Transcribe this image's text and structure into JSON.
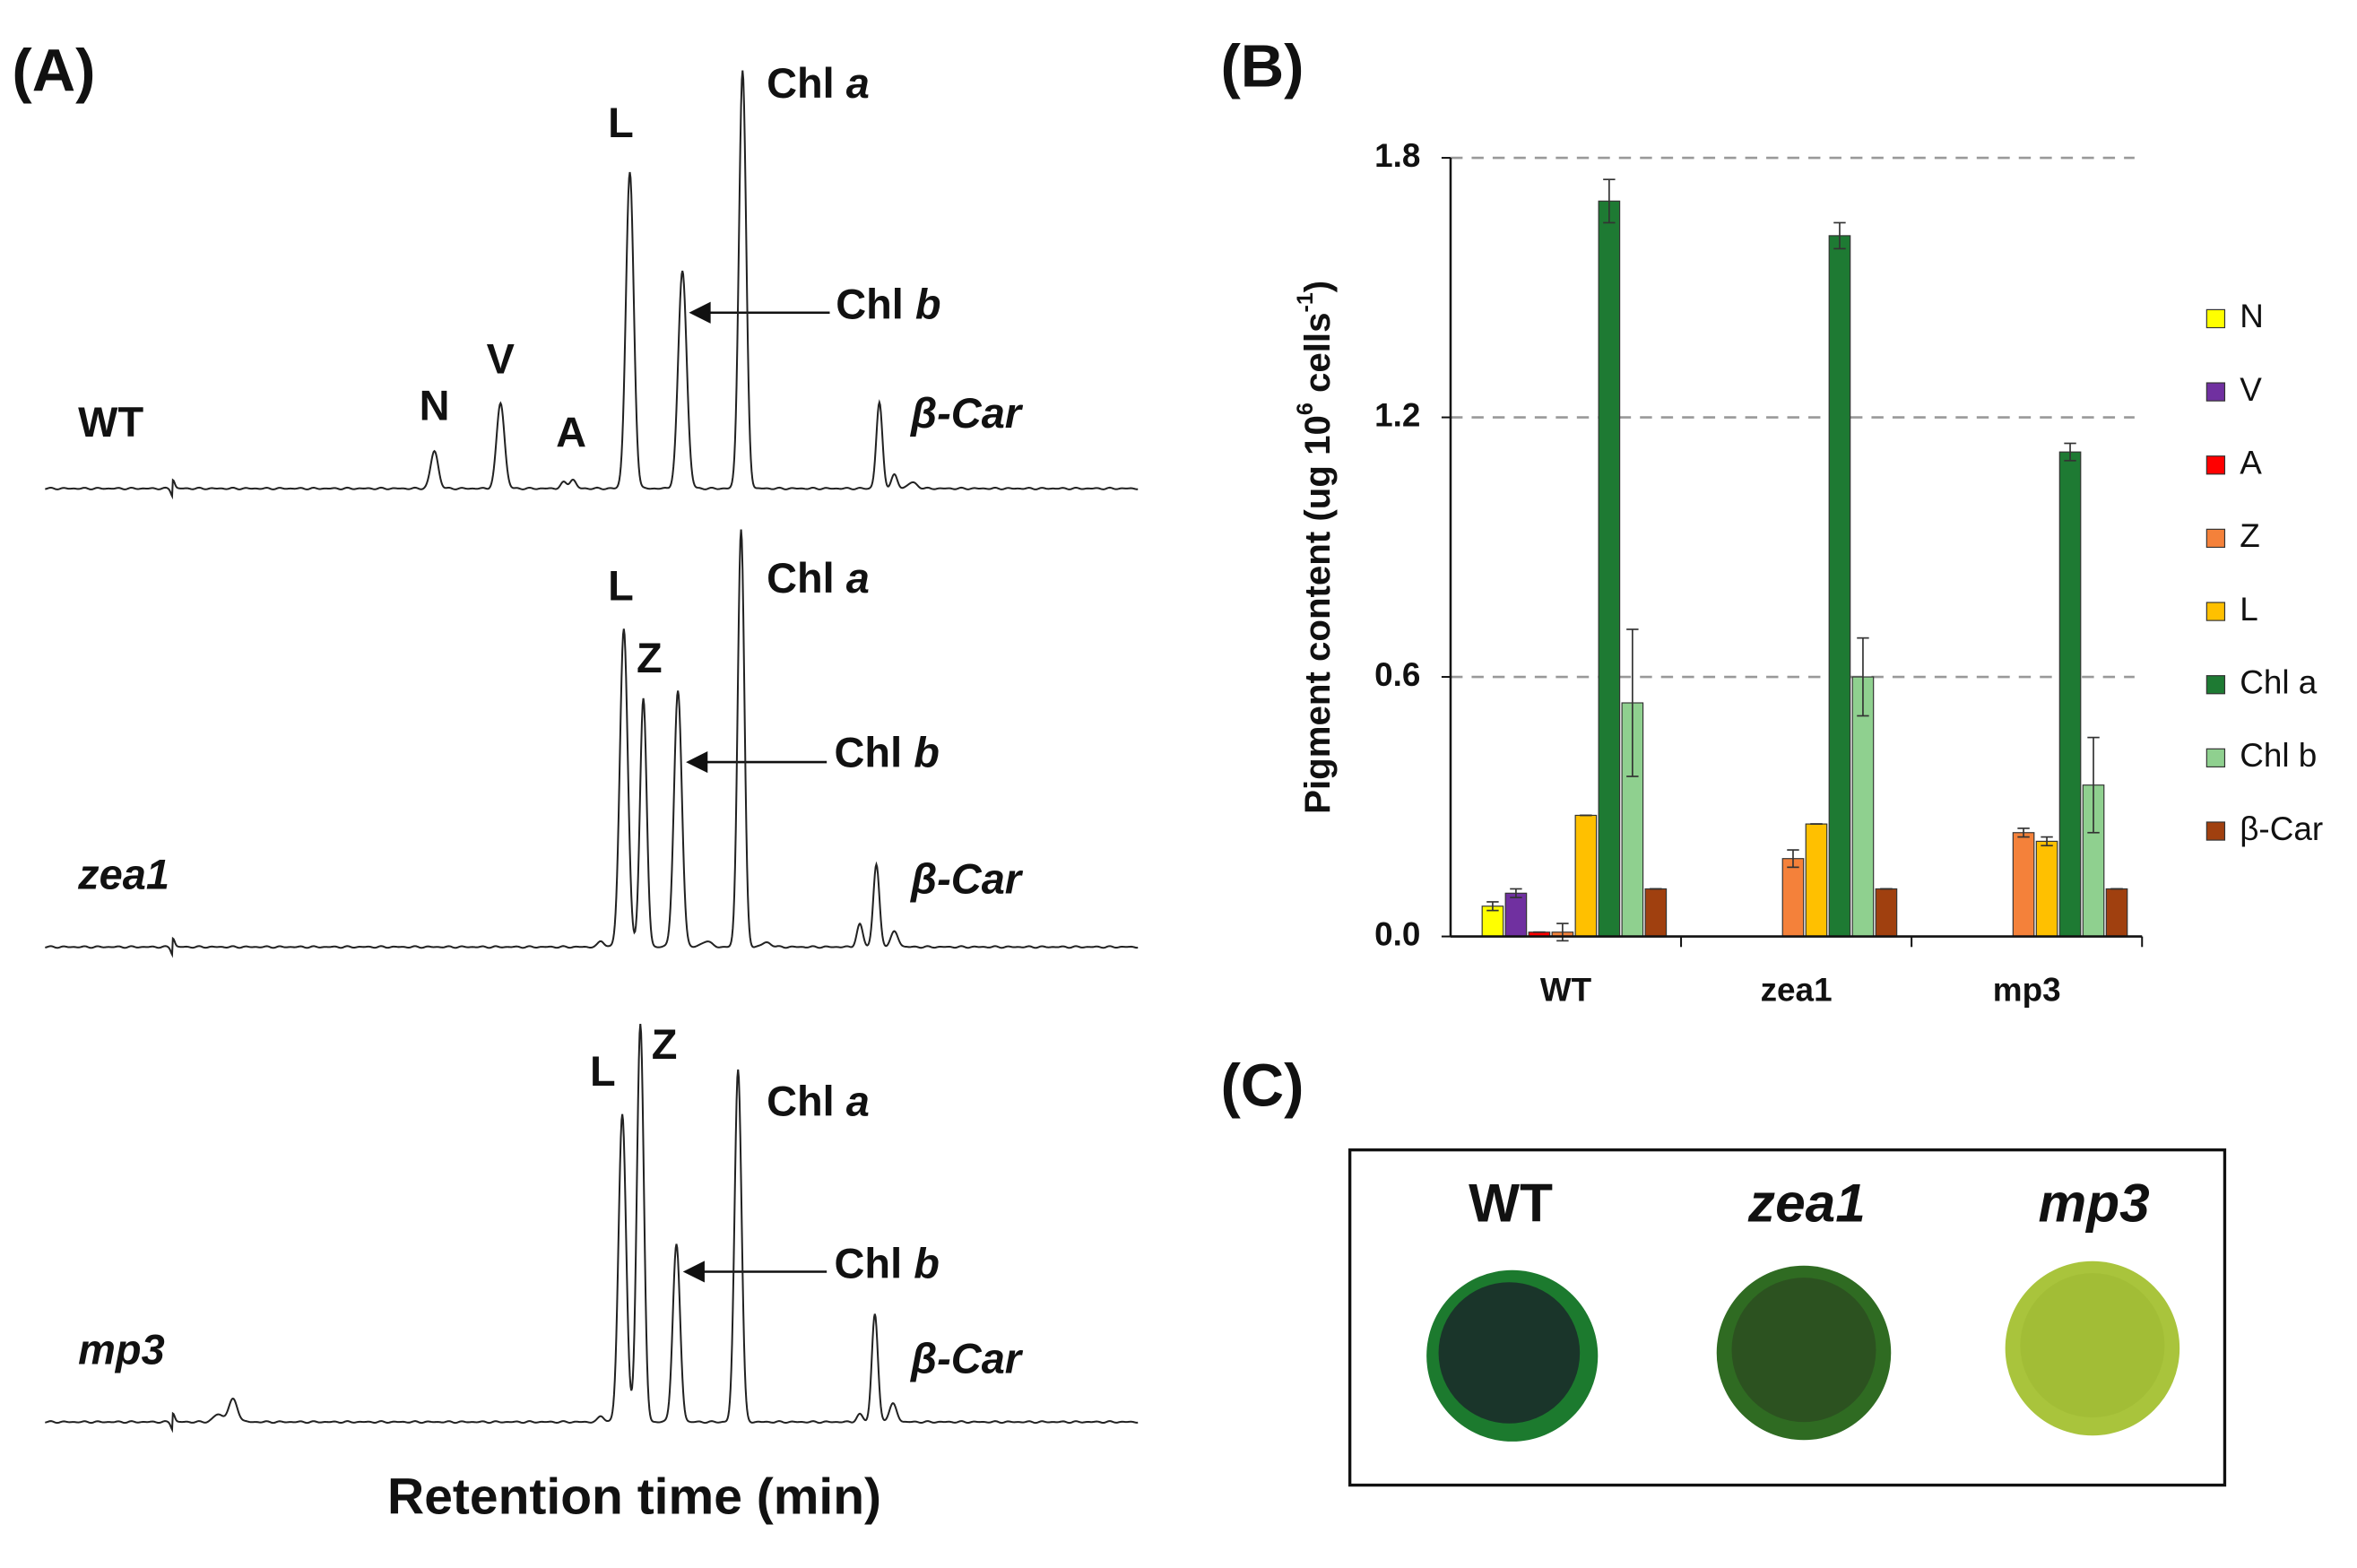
{
  "panel_a": {
    "label": "(A)",
    "x_label": "Retention time (min)",
    "wt": {
      "name": "WT",
      "n": "N",
      "v": "V",
      "a": "A",
      "l": "L",
      "chl_a": [
        "Chl",
        "a"
      ],
      "chl_b": [
        "Chl",
        "b"
      ],
      "car": "β-Car"
    },
    "zea1": {
      "name": "zea1",
      "l": "L",
      "z": "Z",
      "chl_a": [
        "Chl",
        "a"
      ],
      "chl_b": [
        "Chl",
        "b"
      ],
      "car": "β-Car"
    },
    "mp3": {
      "name": "mp3",
      "l": "L",
      "z": "Z",
      "chl_a": [
        "Chl",
        "a"
      ],
      "chl_b": [
        "Chl",
        "b"
      ],
      "car": "β-Car"
    }
  },
  "chart_data": {
    "type": "bar",
    "panel_label": "(B)",
    "y_label": {
      "text1": "Pigment content (ug 10",
      "sup1": "6",
      "text2": " cells",
      "sup2": "-1",
      "text3": ")"
    },
    "categories": [
      "WT",
      "zea1",
      "mp3"
    ],
    "series": [
      {
        "name": "N",
        "color": "#ffff00",
        "values": [
          0.07,
          null,
          null
        ],
        "errors": [
          0.01,
          null,
          null
        ]
      },
      {
        "name": "V",
        "color": "#7030a0",
        "values": [
          0.1,
          null,
          null
        ],
        "errors": [
          0.01,
          null,
          null
        ]
      },
      {
        "name": "A",
        "color": "#ff0000",
        "values": [
          0.01,
          null,
          null
        ],
        "errors": [
          0.0,
          null,
          null
        ]
      },
      {
        "name": "Z",
        "color": "#f4813a",
        "values": [
          0.01,
          0.18,
          0.24
        ],
        "errors": [
          0.02,
          0.02,
          0.01
        ]
      },
      {
        "name": "L",
        "color": "#ffc000",
        "values": [
          0.28,
          0.26,
          0.22
        ],
        "errors": [
          0.0,
          0.0,
          0.01
        ]
      },
      {
        "name": "Chl a",
        "color": "#1e7a33",
        "values": [
          1.7,
          1.62,
          1.12
        ],
        "errors": [
          0.05,
          0.03,
          0.02
        ]
      },
      {
        "name": "Chl b",
        "color": "#8fd08f",
        "values": [
          0.54,
          0.6,
          0.35
        ],
        "errors": [
          0.17,
          0.09,
          0.11
        ]
      },
      {
        "name": "β-Car",
        "color": "#a0400f",
        "values": [
          0.11,
          0.11,
          0.11
        ],
        "errors": [
          0.0,
          0.0,
          0.0
        ]
      }
    ],
    "ylim": [
      0,
      1.8
    ],
    "yticks": [
      {
        "value": 0,
        "label": "0.0"
      },
      0.6,
      1.2,
      1.8
    ],
    "grid": true,
    "legend": "right"
  },
  "panel_c": {
    "label": "(C)",
    "samples": [
      "WT",
      "zea1",
      "mp3"
    ]
  }
}
